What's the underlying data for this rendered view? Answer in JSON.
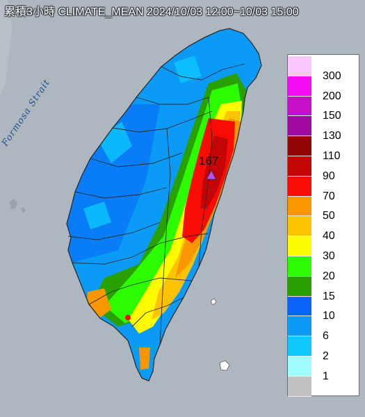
{
  "title": "累積3小時 CLIMATE_MEAN 2024/10/03 12:00~10/03 15:00",
  "water_label": "Formosa Strait",
  "peak_label": "167",
  "colors": {
    "sea": "#aeb6bf",
    "border": "#2a2a2a",
    "peak_marker": "#c04bff"
  },
  "legend": {
    "bins": [
      {
        "label": "300",
        "color": "#fcc7fc"
      },
      {
        "label": "200",
        "color": "#f20cf4"
      },
      {
        "label": "150",
        "color": "#c70ec8"
      },
      {
        "label": "130",
        "color": "#a00aa0"
      },
      {
        "label": "110",
        "color": "#950406"
      },
      {
        "label": "90",
        "color": "#c40506"
      },
      {
        "label": "70",
        "color": "#f90b06"
      },
      {
        "label": "50",
        "color": "#fa9600"
      },
      {
        "label": "40",
        "color": "#fcc303"
      },
      {
        "label": "30",
        "color": "#fefb01"
      },
      {
        "label": "20",
        "color": "#2cfc00"
      },
      {
        "label": "15",
        "color": "#28a000"
      },
      {
        "label": "10",
        "color": "#0864f7"
      },
      {
        "label": "6",
        "color": "#0b9bf7"
      },
      {
        "label": "2",
        "color": "#0ec7fd"
      },
      {
        "label": "1",
        "color": "#9efcfc"
      },
      {
        "label": "",
        "color": "#c1c1c1"
      }
    ]
  }
}
